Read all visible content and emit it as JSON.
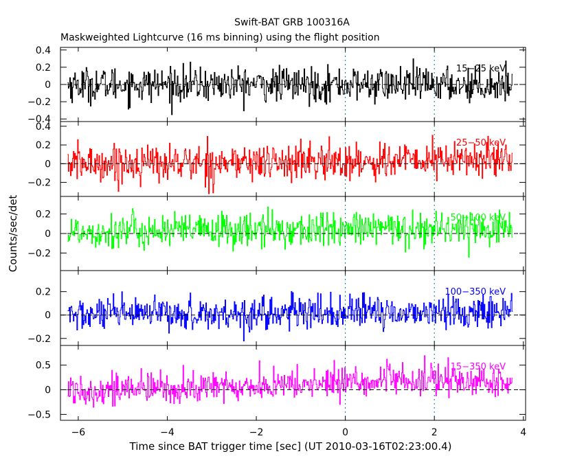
{
  "header": {
    "title": "Swift-BAT GRB 100316A",
    "subtitle": "Maskweighted Lightcurve (16 ms binning) using the flight position"
  },
  "chart_data": {
    "type": "line",
    "xlabel": "Time since BAT trigger time [sec] (UT 2010-03-16T02:23:00.4)",
    "ylabel": "Counts/sec/det",
    "xlim": [
      -6.4,
      4.05
    ],
    "x_ticks": [
      -6,
      -4,
      -2,
      0,
      2,
      4
    ],
    "x_tick_labels": [
      "−6",
      "−4",
      "−2",
      "0",
      "2",
      "4"
    ],
    "x_start": -6.24,
    "x_end": 3.76,
    "bin_width": 0.016,
    "reference_lines": {
      "x_dotted": [
        0,
        2
      ],
      "y_dashed": 0
    },
    "panels": [
      {
        "name": "15-25 keV",
        "label": "15−25 keV",
        "color": "#000000",
        "ylim": [
          -0.43,
          0.43
        ],
        "y_ticks": [
          -0.4,
          -0.2,
          0,
          0.2,
          0.4
        ],
        "y_tick_labels": [
          "−0.4",
          "−0.2",
          "0",
          "0.2",
          "0.4"
        ],
        "noise_sigma": 0.1,
        "trend": [
          [
            -6.24,
            0.0
          ],
          [
            0.0,
            0.0
          ],
          [
            3.76,
            0.0
          ]
        ]
      },
      {
        "name": "25-50 keV",
        "label": "25−50 keV",
        "color": "#ff0000",
        "ylim": [
          -0.35,
          0.45
        ],
        "y_ticks": [
          -0.2,
          0,
          0.2,
          0.4
        ],
        "y_tick_labels": [
          "−0.2",
          "0",
          "0.2",
          "0.4"
        ],
        "noise_sigma": 0.1,
        "trend": [
          [
            -6.24,
            0.0
          ],
          [
            0.0,
            0.02
          ],
          [
            3.76,
            0.05
          ]
        ]
      },
      {
        "name": "50-100 keV",
        "label": "50−100 keV",
        "color": "#00ff00",
        "ylim": [
          -0.38,
          0.38
        ],
        "y_ticks": [
          -0.2,
          0,
          0.2
        ],
        "y_tick_labels": [
          "−0.2",
          "0",
          "0.2"
        ],
        "noise_sigma": 0.09,
        "trend": [
          [
            -6.24,
            0.02
          ],
          [
            0.0,
            0.04
          ],
          [
            3.76,
            0.06
          ]
        ]
      },
      {
        "name": "100-350 keV",
        "label": "100−350 keV",
        "color": "#0000ff",
        "ylim": [
          -0.26,
          0.38
        ],
        "y_ticks": [
          -0.2,
          0,
          0.2
        ],
        "y_tick_labels": [
          "−0.2",
          "0",
          "0.2"
        ],
        "noise_sigma": 0.07,
        "trend": [
          [
            -6.24,
            0.0
          ],
          [
            0.0,
            0.02
          ],
          [
            3.76,
            0.03
          ]
        ]
      },
      {
        "name": "15-350 keV",
        "label": "15−350 keV",
        "color": "#ff00ff",
        "ylim": [
          -0.62,
          0.9
        ],
        "y_ticks": [
          -0.5,
          0,
          0.5
        ],
        "y_tick_labels": [
          "−0.5",
          "0",
          "0.5"
        ],
        "noise_sigma": 0.16,
        "trend": [
          [
            -6.24,
            0.0
          ],
          [
            -4.0,
            0.02
          ],
          [
            -1.0,
            0.1
          ],
          [
            0.0,
            0.17
          ],
          [
            2.0,
            0.19
          ],
          [
            3.76,
            0.13
          ]
        ]
      }
    ]
  }
}
